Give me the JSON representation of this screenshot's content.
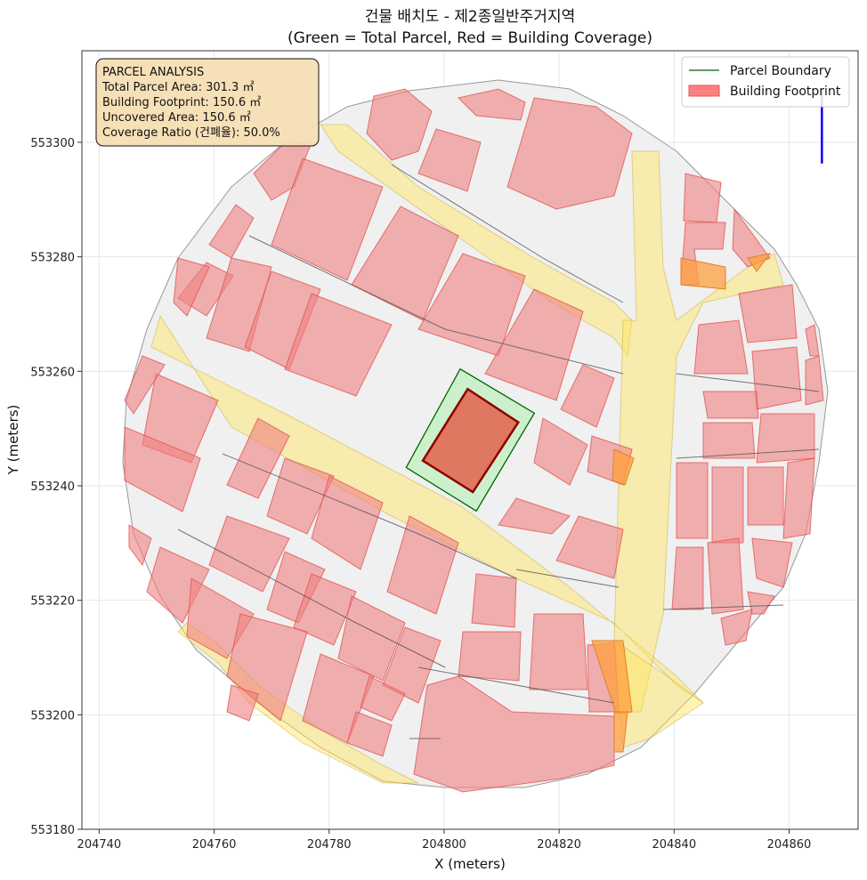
{
  "chart_data": {
    "type": "map",
    "title_line1": "건물 배치도 - 제2종일반주거지역",
    "title_line2": "(Green = Total Parcel, Red = Building Coverage)",
    "xlabel": "X (meters)",
    "ylabel": "Y (meters)",
    "xlim": [
      204737,
      204872
    ],
    "ylim": [
      553180,
      553316
    ],
    "x_ticks": [
      204740,
      204760,
      204780,
      204800,
      204820,
      204840,
      204860
    ],
    "y_ticks": [
      553180,
      553200,
      553220,
      553240,
      553260,
      553280,
      553300
    ],
    "x_tick_labels": [
      "204740",
      "204760",
      "204780",
      "204800",
      "204820",
      "204840",
      "204860"
    ],
    "y_tick_labels": [
      "553180",
      "553200",
      "553220",
      "553240",
      "553260",
      "553280",
      "553300"
    ],
    "grid": true,
    "legend_position": "top-right",
    "legend": [
      {
        "label": "Parcel Boundary",
        "kind": "line",
        "color": "#006400"
      },
      {
        "label": "Building Footprint",
        "kind": "patch",
        "color": "#ff8080"
      }
    ],
    "info_box": {
      "lines": [
        "PARCEL ANALYSIS",
        "Total Parcel Area: 301.3 ㎡",
        "Building Footprint: 150.6 ㎡",
        "Uncovered Area: 150.6 ㎡",
        "Coverage Ratio (건폐율): 50.0%"
      ]
    },
    "metrics": {
      "total_parcel_area_m2": 301.3,
      "building_footprint_m2": 150.6,
      "uncovered_area_m2": 150.6,
      "coverage_ratio_percent": 50.0
    },
    "target_parcel": [
      [
        204793.4,
        553243.2
      ],
      [
        204802.8,
        553260.4
      ],
      [
        204815.7,
        553252.7
      ],
      [
        204805.6,
        553235.6
      ]
    ],
    "target_building": [
      [
        204796.3,
        553244.4
      ],
      [
        204804.1,
        553256.9
      ],
      [
        204812.9,
        553251.1
      ],
      [
        204805.0,
        553238.9
      ]
    ],
    "north_arrow": [
      [
        204865.7,
        553309.2
      ],
      [
        204865.7,
        553296.3
      ]
    ],
    "colors": {
      "parcel": "#c8f0c8",
      "parcel_edge": "#006400",
      "building": "#ff8080",
      "building_edge": "#8b0000",
      "road": "#ffe45c",
      "context": "#f0f0f0",
      "arrow": "#0000ff"
    }
  }
}
